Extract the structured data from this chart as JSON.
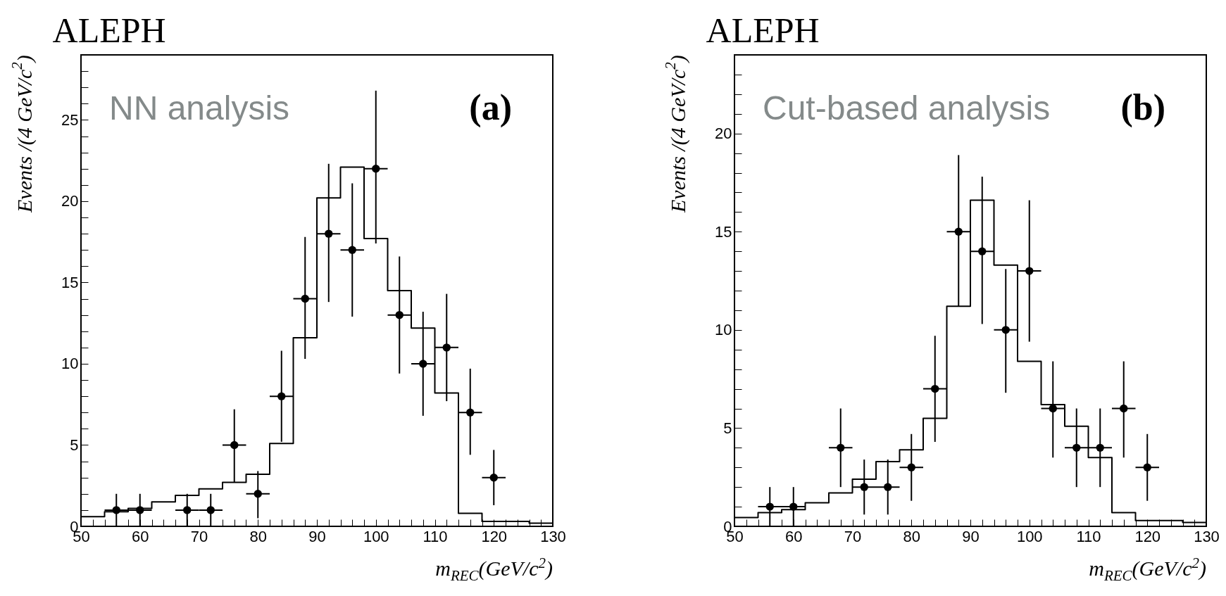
{
  "chart_data": [
    {
      "type": "histogram",
      "title": "ALEPH",
      "xlabel": "m$_{REC}$(GeV/c$^{2}$)",
      "ylabel": "Events /(4 GeV/c$^{2}$)",
      "annotations": [
        "NN analysis",
        "(a)"
      ],
      "xlim": [
        50,
        130
      ],
      "ylim": [
        0,
        29
      ],
      "xticks": [
        50,
        {
          "value": 52,
          "label": null
        },
        {
          "value": 54,
          "label": null
        },
        {
          "value": 56,
          "label": null
        },
        {
          "value": 58,
          "label": null
        },
        60,
        {
          "value": 62,
          "label": null
        },
        {
          "value": 64,
          "label": null
        },
        {
          "value": 66,
          "label": null
        },
        {
          "value": 68,
          "label": null
        },
        70,
        {
          "value": 72,
          "label": null
        },
        {
          "value": 74,
          "label": null
        },
        {
          "value": 76,
          "label": null
        },
        {
          "value": 78,
          "label": null
        },
        80,
        {
          "value": 82,
          "label": null
        },
        {
          "value": 84,
          "label": null
        },
        {
          "value": 86,
          "label": null
        },
        {
          "value": 88,
          "label": null
        },
        90,
        {
          "value": 92,
          "label": null
        },
        {
          "value": 94,
          "label": null
        },
        {
          "value": 96,
          "label": null
        },
        {
          "value": 98,
          "label": null
        },
        100,
        {
          "value": 102,
          "label": null
        },
        {
          "value": 104,
          "label": null
        },
        {
          "value": 106,
          "label": null
        },
        {
          "value": 108,
          "label": null
        },
        110,
        {
          "value": 112,
          "label": null
        },
        {
          "value": 114,
          "label": null
        },
        {
          "value": 116,
          "label": null
        },
        {
          "value": 118,
          "label": null
        },
        120,
        {
          "value": 122,
          "label": null
        },
        {
          "value": 124,
          "label": null
        },
        {
          "value": 126,
          "label": null
        },
        {
          "value": 128,
          "label": null
        },
        130
      ],
      "yticks": [
        0,
        {
          "value": 1,
          "label": null
        },
        {
          "value": 2,
          "label": null
        },
        {
          "value": 3,
          "label": null
        },
        {
          "value": 4,
          "label": null
        },
        5,
        {
          "value": 6,
          "label": null
        },
        {
          "value": 7,
          "label": null
        },
        {
          "value": 8,
          "label": null
        },
        {
          "value": 9,
          "label": null
        },
        10,
        {
          "value": 11,
          "label": null
        },
        {
          "value": 12,
          "label": null
        },
        {
          "value": 13,
          "label": null
        },
        {
          "value": 14,
          "label": null
        },
        15,
        {
          "value": 16,
          "label": null
        },
        {
          "value": 17,
          "label": null
        },
        {
          "value": 18,
          "label": null
        },
        {
          "value": 19,
          "label": null
        },
        20,
        {
          "value": 21,
          "label": null
        },
        {
          "value": 22,
          "label": null
        },
        {
          "value": 23,
          "label": null
        },
        {
          "value": 24,
          "label": null
        },
        25,
        {
          "value": 26,
          "label": null
        },
        {
          "value": 27,
          "label": null
        },
        {
          "value": 28,
          "label": null
        }
      ],
      "series": [
        {
          "type": "histogram",
          "color": "#000000",
          "bins": [
            50,
            54,
            58,
            62,
            66,
            70,
            74,
            78,
            82,
            86,
            90,
            94,
            98,
            102,
            106,
            110,
            114,
            118,
            122,
            126,
            130
          ],
          "values": [
            0.6,
            0.9,
            1.1,
            1.5,
            1.9,
            2.3,
            2.7,
            3.2,
            5.1,
            11.6,
            20.2,
            22.1,
            17.7,
            14.5,
            12.2,
            8.2,
            0.8,
            0.3,
            0.3,
            0.2
          ]
        },
        {
          "type": "scatter",
          "color": "#000000",
          "marker": "circle",
          "x": [
            56,
            60,
            68,
            72,
            76,
            80,
            84,
            88,
            92,
            96,
            100,
            104,
            108,
            112,
            116,
            120
          ],
          "values": [
            1,
            1,
            1,
            1,
            5,
            2,
            8,
            14,
            18,
            17,
            22,
            13,
            10,
            11,
            7,
            3
          ],
          "errors": [
            [
              0,
              2.0
            ],
            [
              0,
              2.0
            ],
            [
              0,
              2.0
            ],
            [
              0,
              2.0
            ],
            [
              2.7,
              7.2
            ],
            [
              0.5,
              3.4
            ],
            [
              5.2,
              10.8
            ],
            [
              10.3,
              17.8
            ],
            [
              13.8,
              22.3
            ],
            [
              12.9,
              21.1
            ],
            [
              17.4,
              26.8
            ],
            [
              9.4,
              16.6
            ],
            [
              6.8,
              13.2
            ],
            [
              7.7,
              14.3
            ],
            [
              4.4,
              9.7
            ],
            [
              1.3,
              4.7
            ]
          ],
          "xerrors": [
            2,
            2,
            2,
            2,
            2,
            2,
            2,
            2,
            2,
            2,
            2,
            2,
            2,
            2,
            2,
            2
          ]
        }
      ]
    },
    {
      "type": "histogram",
      "title": "ALEPH",
      "xlabel": "m$_{REC}$(GeV/c$^{2}$)",
      "ylabel": "Events /(4 GeV/c$^{2}$)",
      "annotations": [
        "Cut-based analysis",
        "(b)"
      ],
      "xlim": [
        50,
        130
      ],
      "ylim": [
        0,
        24
      ],
      "xticks": [
        50,
        {
          "value": 52,
          "label": null
        },
        {
          "value": 54,
          "label": null
        },
        {
          "value": 56,
          "label": null
        },
        {
          "value": 58,
          "label": null
        },
        60,
        {
          "value": 62,
          "label": null
        },
        {
          "value": 64,
          "label": null
        },
        {
          "value": 66,
          "label": null
        },
        {
          "value": 68,
          "label": null
        },
        70,
        {
          "value": 72,
          "label": null
        },
        {
          "value": 74,
          "label": null
        },
        {
          "value": 76,
          "label": null
        },
        {
          "value": 78,
          "label": null
        },
        80,
        {
          "value": 82,
          "label": null
        },
        {
          "value": 84,
          "label": null
        },
        {
          "value": 86,
          "label": null
        },
        {
          "value": 88,
          "label": null
        },
        90,
        {
          "value": 92,
          "label": null
        },
        {
          "value": 94,
          "label": null
        },
        {
          "value": 96,
          "label": null
        },
        {
          "value": 98,
          "label": null
        },
        100,
        {
          "value": 102,
          "label": null
        },
        {
          "value": 104,
          "label": null
        },
        {
          "value": 106,
          "label": null
        },
        {
          "value": 108,
          "label": null
        },
        110,
        {
          "value": 112,
          "label": null
        },
        {
          "value": 114,
          "label": null
        },
        {
          "value": 116,
          "label": null
        },
        {
          "value": 118,
          "label": null
        },
        120,
        {
          "value": 122,
          "label": null
        },
        {
          "value": 124,
          "label": null
        },
        {
          "value": 126,
          "label": null
        },
        {
          "value": 128,
          "label": null
        },
        130
      ],
      "yticks": [
        0,
        {
          "value": 1,
          "label": null
        },
        {
          "value": 2,
          "label": null
        },
        {
          "value": 3,
          "label": null
        },
        {
          "value": 4,
          "label": null
        },
        5,
        {
          "value": 6,
          "label": null
        },
        {
          "value": 7,
          "label": null
        },
        {
          "value": 8,
          "label": null
        },
        {
          "value": 9,
          "label": null
        },
        10,
        {
          "value": 11,
          "label": null
        },
        {
          "value": 12,
          "label": null
        },
        {
          "value": 13,
          "label": null
        },
        {
          "value": 14,
          "label": null
        },
        15,
        {
          "value": 16,
          "label": null
        },
        {
          "value": 17,
          "label": null
        },
        {
          "value": 18,
          "label": null
        },
        {
          "value": 19,
          "label": null
        },
        20,
        {
          "value": 21,
          "label": null
        },
        {
          "value": 22,
          "label": null
        },
        {
          "value": 23,
          "label": null
        }
      ],
      "series": [
        {
          "type": "histogram",
          "color": "#000000",
          "bins": [
            50,
            54,
            58,
            62,
            66,
            70,
            74,
            78,
            82,
            86,
            90,
            94,
            98,
            102,
            106,
            110,
            114,
            118,
            122,
            126,
            130
          ],
          "values": [
            0.45,
            0.7,
            0.85,
            1.2,
            1.7,
            2.4,
            3.3,
            3.9,
            5.5,
            11.2,
            16.6,
            13.3,
            8.4,
            6.2,
            5.1,
            3.5,
            0.7,
            0.3,
            0.3,
            0.2
          ]
        },
        {
          "type": "scatter",
          "color": "#000000",
          "marker": "circle",
          "x": [
            56,
            60,
            68,
            72,
            76,
            80,
            84,
            88,
            92,
            96,
            100,
            104,
            108,
            112,
            116,
            120
          ],
          "values": [
            1,
            1,
            4,
            2,
            2,
            3,
            7,
            15,
            14,
            10,
            13,
            6,
            4,
            4,
            6,
            3
          ],
          "errors": [
            [
              0,
              2.0
            ],
            [
              0,
              2.0
            ],
            [
              2.0,
              6.0
            ],
            [
              0.6,
              3.4
            ],
            [
              0.6,
              3.4
            ],
            [
              1.3,
              4.7
            ],
            [
              4.3,
              9.7
            ],
            [
              11.2,
              18.9
            ],
            [
              10.3,
              17.8
            ],
            [
              6.8,
              13.1
            ],
            [
              9.4,
              16.6
            ],
            [
              3.5,
              8.4
            ],
            [
              2.0,
              6.0
            ],
            [
              2.0,
              6.0
            ],
            [
              3.5,
              8.4
            ],
            [
              1.3,
              4.7
            ]
          ],
          "xerrors": [
            2,
            2,
            2,
            2,
            2,
            2,
            2,
            2,
            2,
            2,
            2,
            2,
            2,
            2,
            2,
            2
          ]
        }
      ]
    }
  ]
}
